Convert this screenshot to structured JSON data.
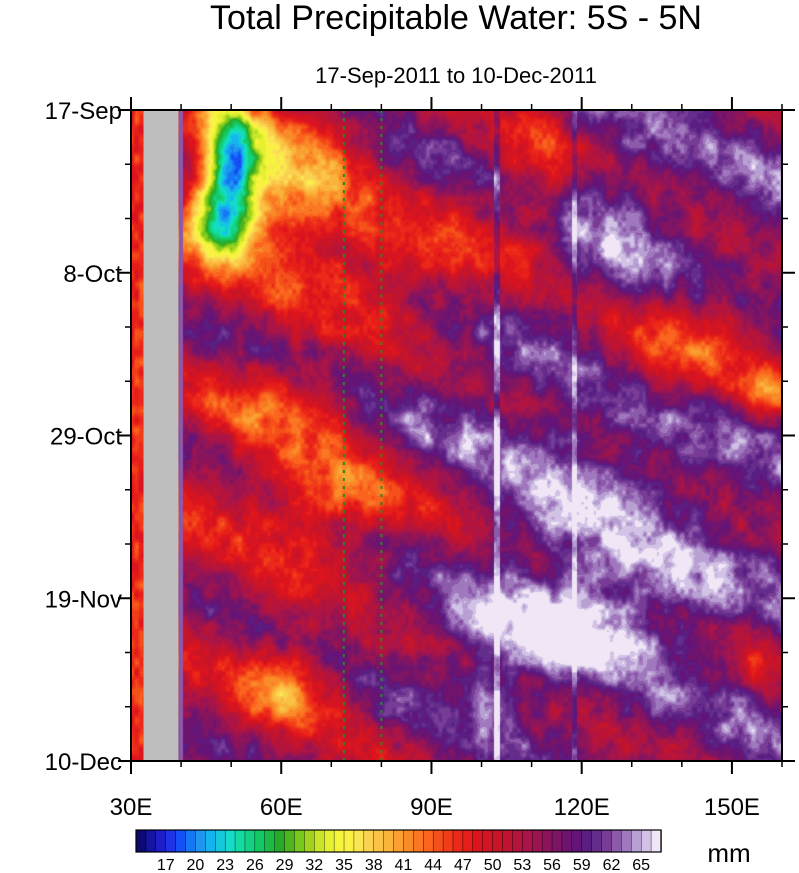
{
  "chart_data": {
    "type": "heatmap",
    "title": "Total Precipitable Water: 5S - 5N",
    "subtitle": "17-Sep-2011 to 10-Dec-2011",
    "xlabel": "",
    "ylabel": "",
    "x_unit": "degrees longitude East",
    "xlim": [
      30,
      160
    ],
    "x_ticks": [
      {
        "value": 30,
        "label": "30E"
      },
      {
        "value": 60,
        "label": "60E"
      },
      {
        "value": 90,
        "label": "90E"
      },
      {
        "value": 120,
        "label": "120E"
      },
      {
        "value": 150,
        "label": "150E"
      }
    ],
    "x_minor_step": 10,
    "y_unit": "days since 17-Sep-2011 (time runs downward)",
    "ylim": [
      0,
      84
    ],
    "y_ticks": [
      {
        "value": 0,
        "label": "17-Sep"
      },
      {
        "value": 21,
        "label": "8-Oct"
      },
      {
        "value": 42,
        "label": "29-Oct"
      },
      {
        "value": 63,
        "label": "19-Nov"
      },
      {
        "value": 84,
        "label": "10-Dec"
      }
    ],
    "y_minor_step": 7,
    "colorbar": {
      "units": "mm",
      "min": 14,
      "max": 66,
      "step": 1,
      "labels": [
        "17",
        "20",
        "23",
        "26",
        "29",
        "32",
        "35",
        "38",
        "41",
        "44",
        "47",
        "50",
        "53",
        "56",
        "59",
        "62",
        "65"
      ],
      "colors": [
        "#0a0a70",
        "#1414a0",
        "#1e1ec8",
        "#1e32e6",
        "#1450f5",
        "#1478f5",
        "#1e96f0",
        "#14b4f0",
        "#14c8dc",
        "#14dcc8",
        "#14dca0",
        "#14d282",
        "#14c864",
        "#1eb946",
        "#28aa28",
        "#50b41e",
        "#78c81e",
        "#a0d21e",
        "#c8e628",
        "#e6f032",
        "#f5f53c",
        "#faf046",
        "#fae650",
        "#fad250",
        "#fac346",
        "#fab43c",
        "#faa032",
        "#fa8c28",
        "#fa7823",
        "#fa641e",
        "#f55019",
        "#f03c19",
        "#eb2819",
        "#e61e19",
        "#dc141e",
        "#d21423",
        "#c81428",
        "#be1432",
        "#b4143c",
        "#aa1446",
        "#9b1450",
        "#8c145a",
        "#7d1464",
        "#6e146e",
        "#641478",
        "#5a1e82",
        "#642d8c",
        "#783c96",
        "#8c5aaa",
        "#a078be",
        "#b9a0d2",
        "#d2c3e6",
        "#f0e6f5"
      ]
    },
    "missing_data": {
      "x_range": [
        32.5,
        39.5
      ],
      "color": "#bebebe"
    },
    "reference_lines": {
      "x": [
        72.5,
        80
      ],
      "style": "dotted",
      "color": "#228b22"
    },
    "patterns": [
      {
        "cx": 50,
        "cy": 6,
        "rx": 6,
        "ry": 7,
        "v": -24
      },
      {
        "cx": 48,
        "cy": 14,
        "rx": 7,
        "ry": 6,
        "v": -22
      },
      {
        "cx": 62,
        "cy": 10,
        "rx": 14,
        "ry": 12,
        "v": -12
      },
      {
        "cx": 85,
        "cy": 20,
        "rx": 18,
        "ry": 7,
        "v": -9
      },
      {
        "cx": 110,
        "cy": 8,
        "rx": 8,
        "ry": 10,
        "v": -8
      },
      {
        "cx": 138,
        "cy": 30,
        "rx": 22,
        "ry": 8,
        "v": -12
      },
      {
        "cx": 158,
        "cy": 36,
        "rx": 6,
        "ry": 3,
        "v": -10
      },
      {
        "cx": 60,
        "cy": 38,
        "rx": 14,
        "ry": 5,
        "v": -8
      },
      {
        "cx": 72,
        "cy": 50,
        "rx": 22,
        "ry": 7,
        "v": -11
      },
      {
        "cx": 60,
        "cy": 74,
        "rx": 10,
        "ry": 5,
        "v": -13
      },
      {
        "cx": 155,
        "cy": 70,
        "rx": 6,
        "ry": 5,
        "v": -6
      },
      {
        "cx": 88,
        "cy": 45,
        "rx": 12,
        "ry": 10,
        "v": 4
      },
      {
        "cx": 128,
        "cy": 18,
        "rx": 12,
        "ry": 12,
        "v": 5
      },
      {
        "cx": 118,
        "cy": 45,
        "rx": 22,
        "ry": 20,
        "v": 6
      },
      {
        "cx": 110,
        "cy": 68,
        "rx": 22,
        "ry": 7,
        "v": 7
      },
      {
        "cx": 102,
        "cy": 75,
        "rx": 5,
        "ry": 4,
        "v": 5
      },
      {
        "cx": 130,
        "cy": 62,
        "rx": 18,
        "ry": 8,
        "v": 4
      }
    ]
  }
}
